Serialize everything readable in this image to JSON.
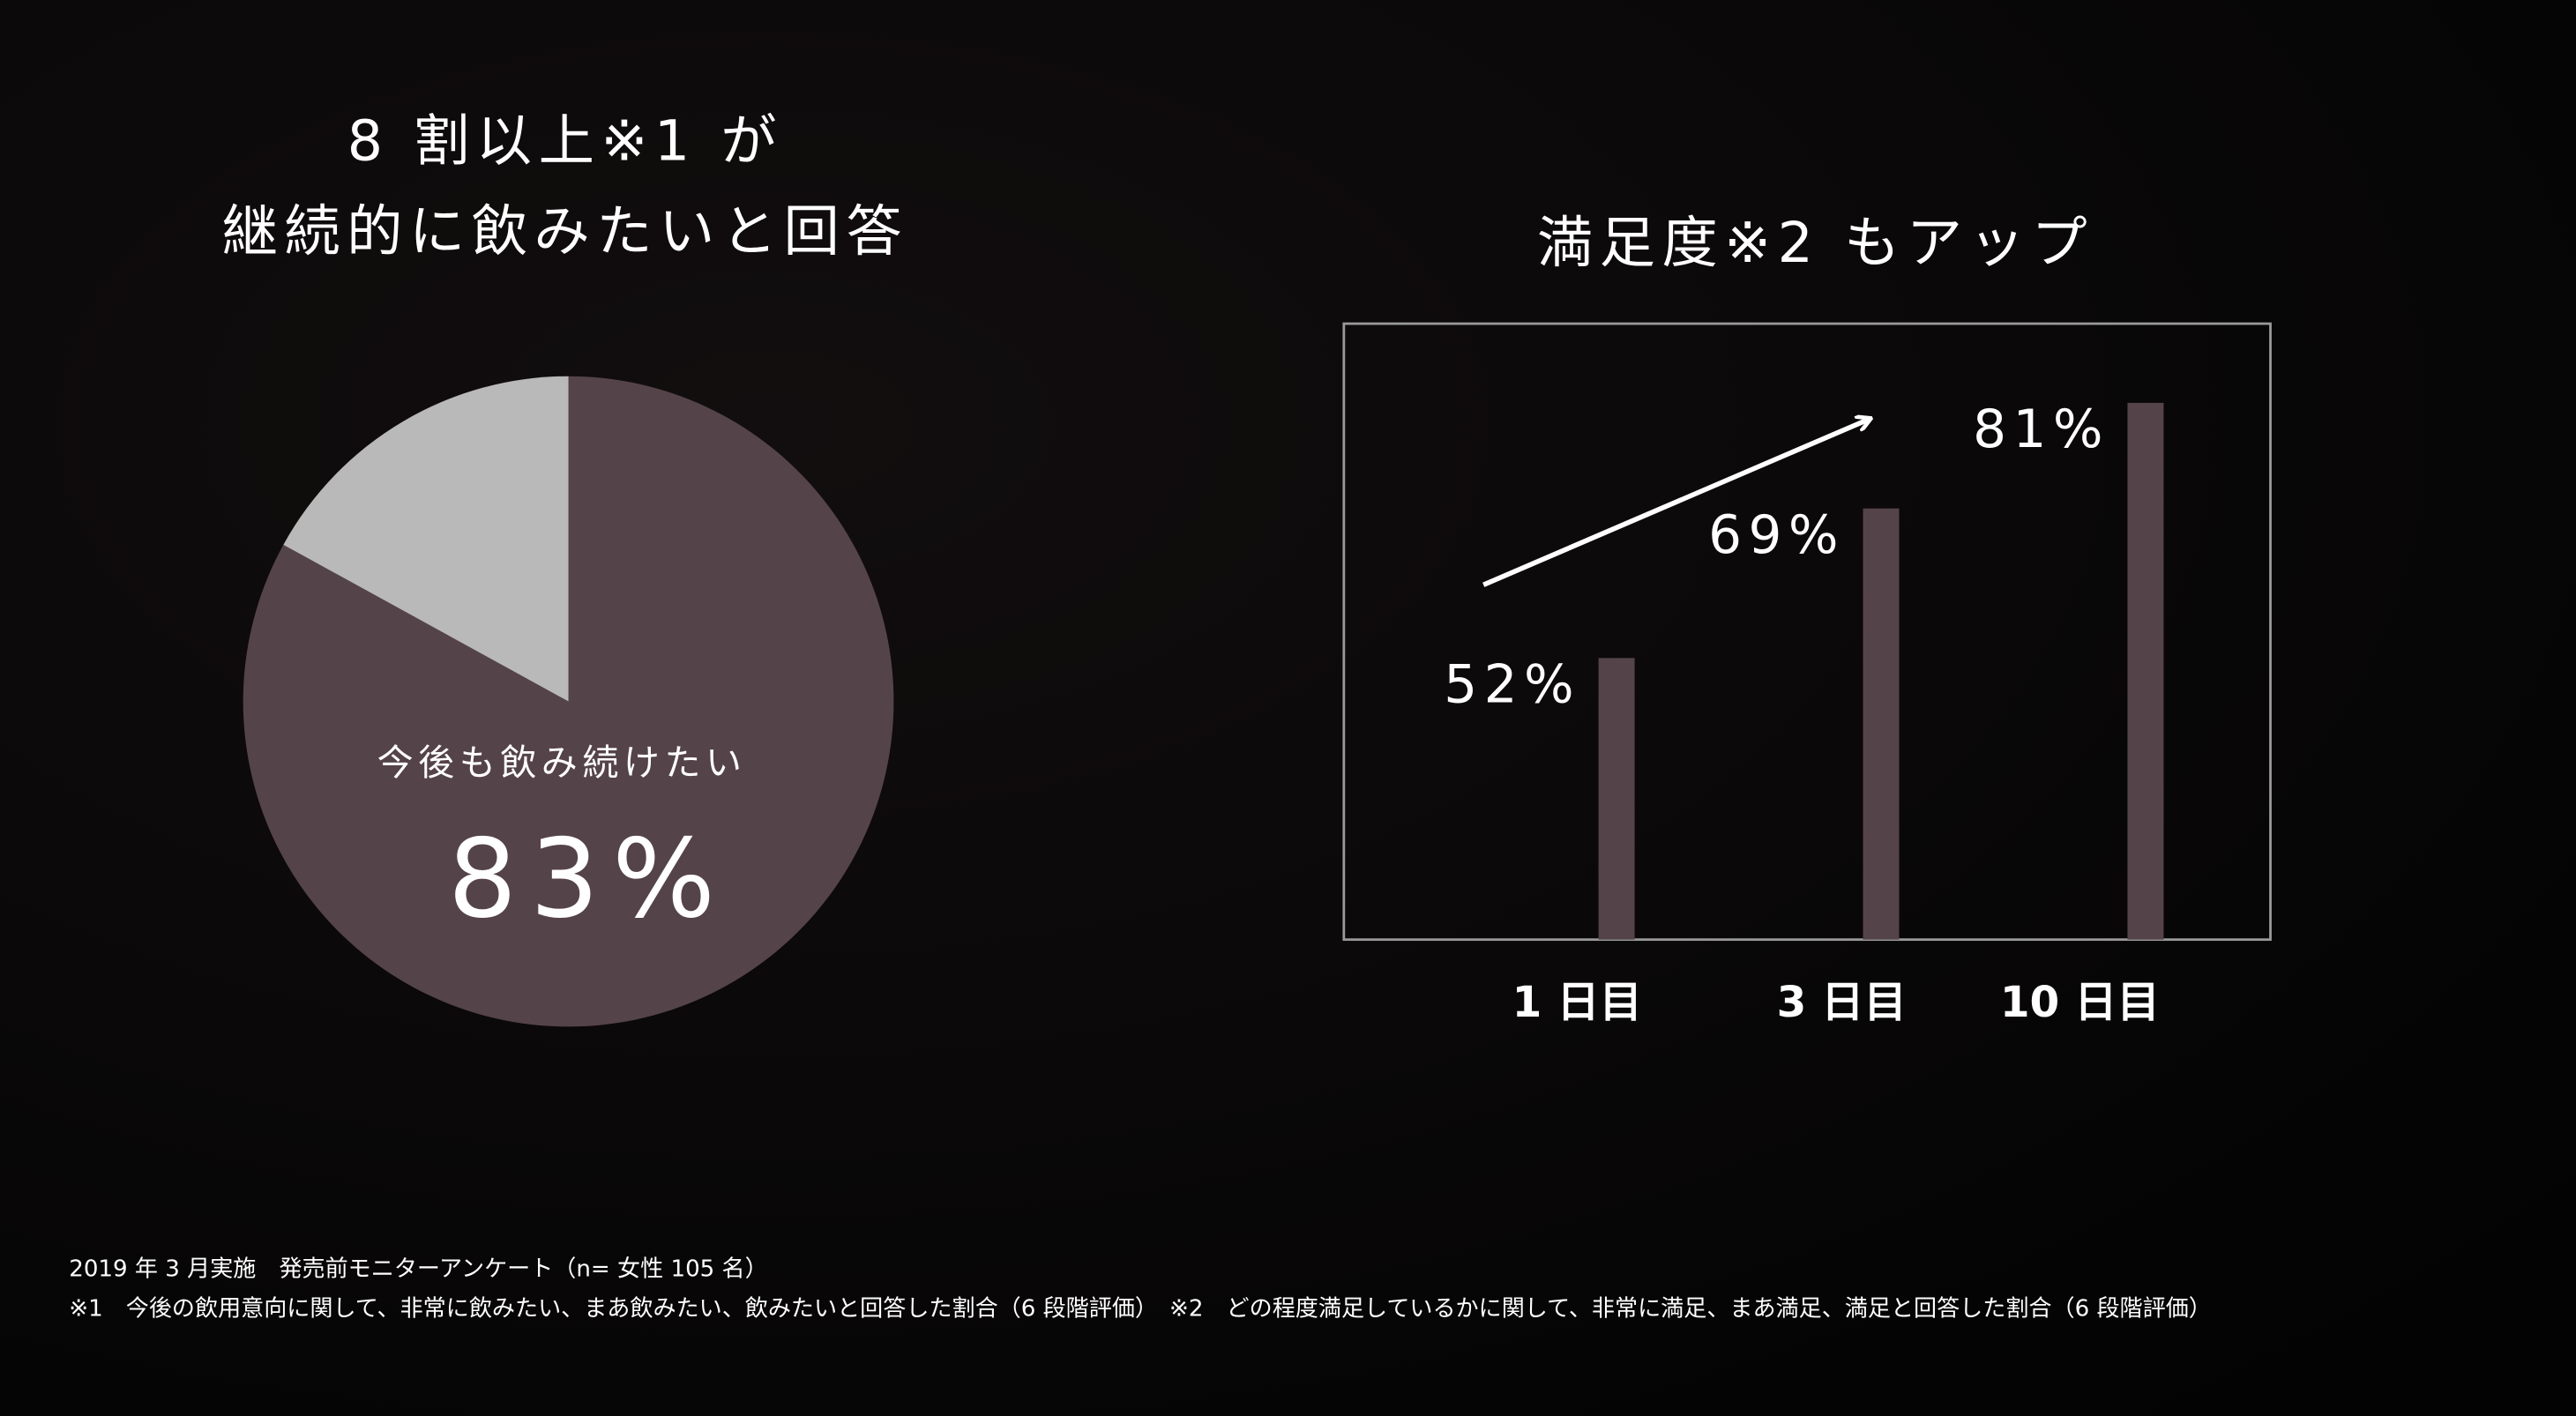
{
  "chart_data": [
    {
      "type": "pie",
      "title": [
        "8 割以上※1 が",
        "継続的に飲みたいと回答"
      ],
      "categories": [
        "今後も飲み続けたい",
        null
      ],
      "values": [
        83,
        17
      ],
      "value_labels": [
        "83%",
        null
      ],
      "colors": [
        "#55434a",
        "#b8b9b8"
      ]
    },
    {
      "type": "bar",
      "title": "満足度※2 もアップ",
      "categories": [
        "1 日目",
        "3 日目",
        "10 日目"
      ],
      "values": [
        52,
        69,
        81
      ],
      "value_labels": [
        "52%",
        "69%",
        "81%"
      ],
      "color": "#55434a",
      "ylim": [
        20,
        90
      ]
    }
  ],
  "notes": [
    "2019 年 3 月実施　発売前モニターアンケート（n= 女性 105 名）",
    "※1　今後の飲用意向に関して、非常に飲みたい、まあ飲みたい、飲みたいと回答した割合（6 段階評価）　※2　どの程度満足しているかに関して、非常に満足、まあ満足、満足と回答した割合（6 段階評価）"
  ]
}
